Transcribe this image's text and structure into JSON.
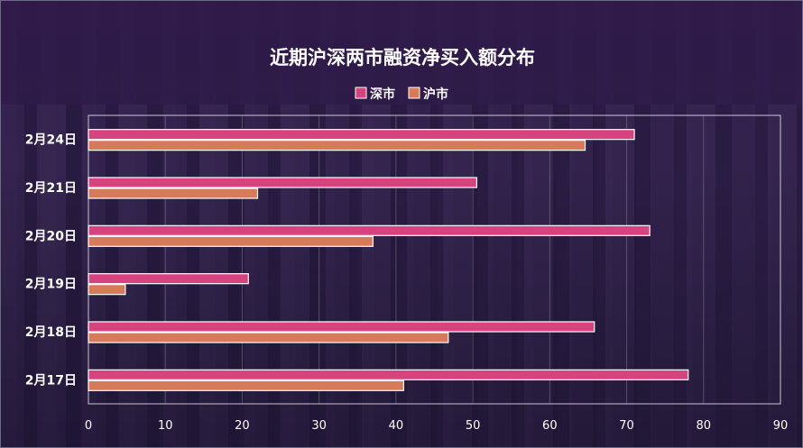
{
  "chart_data": {
    "type": "bar",
    "orientation": "horizontal",
    "title": "近期沪深两市融资净买入额分布",
    "categories": [
      "2月24日",
      "2月21日",
      "2月20日",
      "2月19日",
      "2月18日",
      "2月17日"
    ],
    "series": [
      {
        "name": "深市",
        "color": "#d6437f",
        "values": [
          71,
          50.5,
          73,
          20.8,
          65.8,
          78
        ]
      },
      {
        "name": "沪市",
        "color": "#d77a5a",
        "values": [
          64.6,
          22,
          37,
          4.8,
          46.8,
          41
        ]
      }
    ],
    "xlim": [
      0,
      90
    ],
    "xticks": [
      "0",
      "10",
      "20",
      "30",
      "40",
      "50",
      "60",
      "70",
      "80",
      "90"
    ],
    "grid": true,
    "legend_position": "top-center"
  }
}
